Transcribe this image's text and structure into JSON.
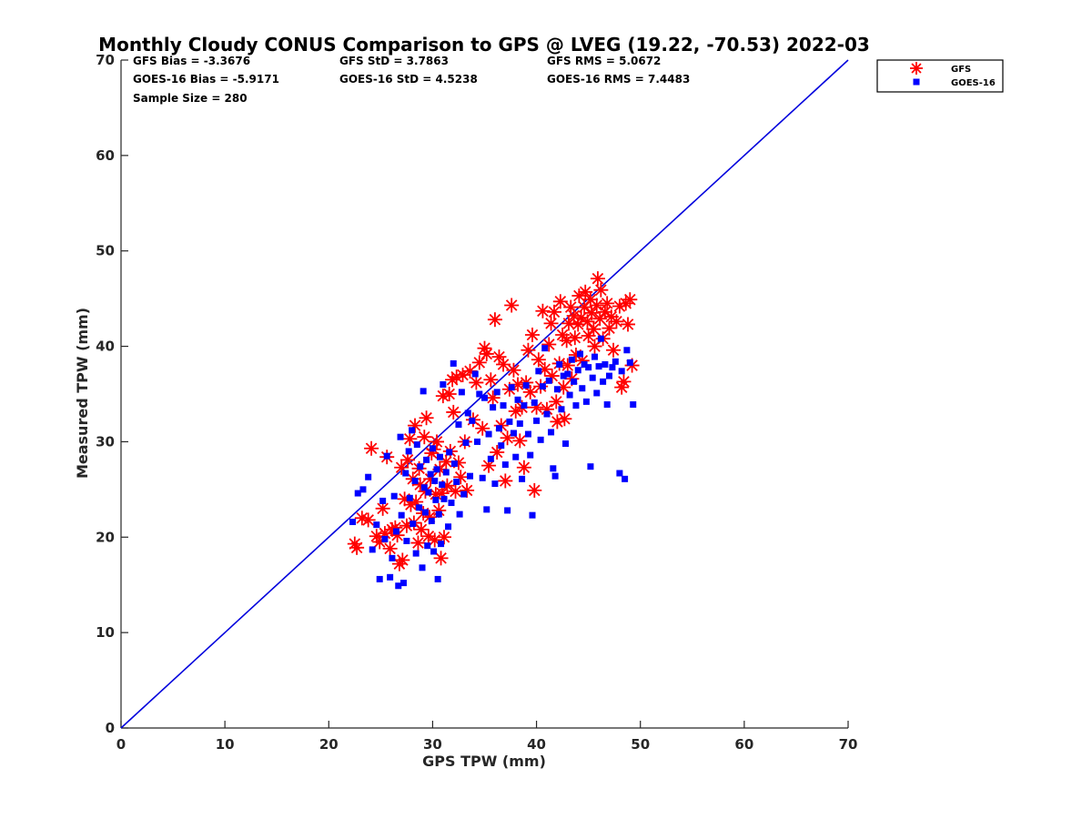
{
  "colors": {
    "gfs": "#ff0000",
    "goes": "#0000ff",
    "one_to_one": "#0000dd",
    "axis": "#262626"
  },
  "chart_data": {
    "type": "scatter",
    "title": "Monthly Cloudy CONUS Comparison to GPS @ LVEG (19.22, -70.53) 2022-03",
    "xlabel": "GPS TPW (mm)",
    "ylabel": "Measured TPW (mm)",
    "xlim": [
      0,
      70
    ],
    "ylim": [
      0,
      70
    ],
    "xticks": [
      "0",
      "10",
      "20",
      "30",
      "40",
      "50",
      "60",
      "70"
    ],
    "yticks": [
      "0",
      "10",
      "20",
      "30",
      "40",
      "50",
      "60",
      "70"
    ],
    "grid": false,
    "legend_position": "top-right outside",
    "stats": [
      "GFS Bias = -3.3676",
      "GFS StD = 3.7863",
      "GFS RMS = 5.0672",
      "GOES-16 Bias = -5.9171",
      "GOES-16 StD = 4.5238",
      "GOES-16 RMS = 7.4483",
      "Sample Size = 280"
    ],
    "reference_line": {
      "x": [
        0,
        70
      ],
      "y": [
        0,
        70
      ]
    },
    "series": [
      {
        "name": "GFS",
        "marker": "asterisk",
        "points": [
          [
            22.5,
            19.3
          ],
          [
            22.7,
            18.9
          ],
          [
            23.2,
            22.0
          ],
          [
            23.8,
            21.8
          ],
          [
            24.1,
            29.3
          ],
          [
            24.6,
            20.1
          ],
          [
            24.9,
            19.5
          ],
          [
            25.2,
            23.0
          ],
          [
            25.4,
            20.4
          ],
          [
            25.6,
            28.4
          ],
          [
            25.9,
            18.8
          ],
          [
            26.1,
            20.8
          ],
          [
            26.4,
            21.0
          ],
          [
            26.6,
            20.2
          ],
          [
            26.8,
            17.2
          ],
          [
            27.0,
            27.3
          ],
          [
            27.1,
            17.6
          ],
          [
            27.3,
            24.0
          ],
          [
            27.5,
            21.2
          ],
          [
            27.6,
            28.1
          ],
          [
            27.8,
            30.3
          ],
          [
            27.9,
            23.4
          ],
          [
            28.1,
            26.1
          ],
          [
            28.2,
            21.5
          ],
          [
            28.3,
            31.7
          ],
          [
            28.4,
            23.7
          ],
          [
            28.6,
            19.4
          ],
          [
            28.7,
            27.2
          ],
          [
            28.8,
            25.5
          ],
          [
            28.9,
            20.8
          ],
          [
            29.1,
            22.5
          ],
          [
            29.2,
            30.5
          ],
          [
            29.3,
            24.8
          ],
          [
            29.4,
            32.5
          ],
          [
            29.6,
            20.1
          ],
          [
            29.7,
            22.1
          ],
          [
            29.8,
            26.1
          ],
          [
            29.9,
            28.8
          ],
          [
            30.1,
            29.2
          ],
          [
            30.2,
            19.7
          ],
          [
            30.3,
            24.5
          ],
          [
            30.4,
            30.0
          ],
          [
            30.6,
            22.8
          ],
          [
            30.7,
            27.1
          ],
          [
            30.8,
            17.8
          ],
          [
            30.9,
            24.6
          ],
          [
            31.0,
            34.8
          ],
          [
            31.1,
            20.0
          ],
          [
            31.3,
            27.9
          ],
          [
            31.4,
            25.4
          ],
          [
            31.6,
            35.0
          ],
          [
            31.7,
            29.0
          ],
          [
            31.9,
            36.5
          ],
          [
            32.0,
            33.1
          ],
          [
            32.2,
            24.8
          ],
          [
            32.3,
            36.8
          ],
          [
            32.5,
            27.8
          ],
          [
            32.7,
            26.3
          ],
          [
            32.9,
            37.0
          ],
          [
            33.1,
            30.0
          ],
          [
            33.3,
            24.9
          ],
          [
            33.6,
            37.4
          ],
          [
            33.9,
            32.3
          ],
          [
            34.2,
            36.2
          ],
          [
            34.5,
            38.3
          ],
          [
            34.8,
            31.4
          ],
          [
            35.0,
            39.8
          ],
          [
            35.2,
            39.2
          ],
          [
            35.4,
            27.5
          ],
          [
            35.6,
            36.5
          ],
          [
            35.8,
            34.6
          ],
          [
            36.0,
            42.8
          ],
          [
            36.2,
            28.9
          ],
          [
            36.4,
            38.9
          ],
          [
            36.6,
            31.7
          ],
          [
            36.8,
            38.1
          ],
          [
            37.0,
            25.9
          ],
          [
            37.2,
            30.4
          ],
          [
            37.4,
            35.5
          ],
          [
            37.6,
            44.3
          ],
          [
            37.8,
            37.5
          ],
          [
            38.0,
            33.2
          ],
          [
            38.2,
            36.0
          ],
          [
            38.4,
            30.1
          ],
          [
            38.6,
            33.6
          ],
          [
            38.8,
            27.3
          ],
          [
            39.0,
            36.2
          ],
          [
            39.2,
            39.6
          ],
          [
            39.4,
            35.2
          ],
          [
            39.6,
            41.2
          ],
          [
            39.8,
            24.9
          ],
          [
            40.0,
            33.6
          ],
          [
            40.2,
            38.6
          ],
          [
            40.4,
            35.8
          ],
          [
            40.6,
            43.7
          ],
          [
            40.8,
            37.6
          ],
          [
            41.0,
            33.4
          ],
          [
            41.2,
            40.2
          ],
          [
            41.4,
            42.4
          ],
          [
            41.5,
            36.9
          ],
          [
            41.7,
            43.6
          ],
          [
            41.9,
            34.2
          ],
          [
            42.0,
            32.1
          ],
          [
            42.2,
            38.2
          ],
          [
            42.3,
            44.7
          ],
          [
            42.5,
            41.2
          ],
          [
            42.6,
            35.7
          ],
          [
            42.7,
            32.4
          ],
          [
            42.9,
            40.6
          ],
          [
            43.0,
            38.0
          ],
          [
            43.1,
            42.4
          ],
          [
            43.3,
            44.1
          ],
          [
            43.4,
            36.6
          ],
          [
            43.6,
            43.2
          ],
          [
            43.7,
            40.9
          ],
          [
            43.8,
            39.1
          ],
          [
            44.0,
            42.3
          ],
          [
            44.1,
            45.3
          ],
          [
            44.3,
            43.0
          ],
          [
            44.4,
            38.5
          ],
          [
            44.6,
            44.1
          ],
          [
            44.7,
            45.7
          ],
          [
            44.9,
            42.6
          ],
          [
            45.0,
            41.1
          ],
          [
            45.2,
            44.9
          ],
          [
            45.3,
            43.5
          ],
          [
            45.5,
            41.8
          ],
          [
            45.6,
            40.0
          ],
          [
            45.8,
            44.3
          ],
          [
            45.9,
            47.1
          ],
          [
            46.1,
            42.9
          ],
          [
            46.2,
            45.9
          ],
          [
            46.4,
            40.8
          ],
          [
            46.6,
            43.6
          ],
          [
            46.8,
            44.5
          ],
          [
            47.0,
            41.9
          ],
          [
            47.2,
            43.1
          ],
          [
            47.4,
            39.6
          ],
          [
            47.7,
            42.6
          ],
          [
            48.0,
            44.2
          ],
          [
            48.2,
            35.7
          ],
          [
            48.4,
            36.3
          ],
          [
            48.6,
            44.5
          ],
          [
            48.8,
            42.3
          ],
          [
            49.0,
            44.9
          ],
          [
            49.2,
            38.0
          ]
        ]
      },
      {
        "name": "GOES-16",
        "marker": "square",
        "points": [
          [
            22.3,
            21.6
          ],
          [
            22.8,
            24.6
          ],
          [
            23.3,
            25.0
          ],
          [
            23.8,
            26.3
          ],
          [
            24.2,
            18.7
          ],
          [
            24.6,
            21.3
          ],
          [
            24.9,
            15.6
          ],
          [
            25.2,
            23.8
          ],
          [
            25.4,
            19.8
          ],
          [
            25.6,
            28.5
          ],
          [
            25.9,
            15.8
          ],
          [
            26.1,
            17.8
          ],
          [
            26.3,
            24.3
          ],
          [
            26.5,
            20.6
          ],
          [
            26.7,
            14.9
          ],
          [
            26.9,
            30.5
          ],
          [
            27.0,
            22.3
          ],
          [
            27.2,
            15.2
          ],
          [
            27.4,
            26.7
          ],
          [
            27.5,
            19.6
          ],
          [
            27.7,
            29.0
          ],
          [
            27.8,
            24.1
          ],
          [
            28.0,
            31.2
          ],
          [
            28.1,
            21.4
          ],
          [
            28.3,
            25.9
          ],
          [
            28.4,
            18.3
          ],
          [
            28.5,
            29.7
          ],
          [
            28.7,
            23.1
          ],
          [
            28.8,
            27.4
          ],
          [
            29.0,
            16.8
          ],
          [
            29.1,
            35.3
          ],
          [
            29.2,
            25.2
          ],
          [
            29.3,
            22.6
          ],
          [
            29.4,
            28.1
          ],
          [
            29.5,
            19.1
          ],
          [
            29.6,
            24.7
          ],
          [
            29.8,
            26.6
          ],
          [
            29.9,
            21.7
          ],
          [
            30.0,
            29.3
          ],
          [
            30.1,
            18.5
          ],
          [
            30.2,
            25.9
          ],
          [
            30.3,
            23.9
          ],
          [
            30.4,
            27.1
          ],
          [
            30.5,
            15.6
          ],
          [
            30.6,
            22.4
          ],
          [
            30.7,
            28.4
          ],
          [
            30.8,
            19.3
          ],
          [
            30.9,
            25.5
          ],
          [
            31.0,
            36.0
          ],
          [
            31.1,
            24.0
          ],
          [
            31.3,
            26.8
          ],
          [
            31.5,
            21.1
          ],
          [
            31.6,
            28.9
          ],
          [
            31.8,
            23.6
          ],
          [
            32.0,
            38.2
          ],
          [
            32.1,
            27.7
          ],
          [
            32.3,
            25.8
          ],
          [
            32.5,
            31.8
          ],
          [
            32.6,
            22.4
          ],
          [
            32.8,
            35.2
          ],
          [
            33.0,
            24.5
          ],
          [
            33.2,
            29.9
          ],
          [
            33.4,
            33.0
          ],
          [
            33.6,
            26.4
          ],
          [
            33.8,
            32.2
          ],
          [
            34.1,
            37.1
          ],
          [
            34.3,
            30.0
          ],
          [
            34.5,
            35.0
          ],
          [
            34.8,
            26.2
          ],
          [
            35.0,
            34.6
          ],
          [
            35.2,
            22.9
          ],
          [
            35.4,
            30.8
          ],
          [
            35.6,
            28.2
          ],
          [
            35.8,
            33.6
          ],
          [
            36.0,
            25.6
          ],
          [
            36.2,
            35.2
          ],
          [
            36.4,
            31.4
          ],
          [
            36.6,
            29.6
          ],
          [
            36.8,
            33.8
          ],
          [
            37.0,
            27.6
          ],
          [
            37.2,
            22.8
          ],
          [
            37.4,
            32.1
          ],
          [
            37.6,
            35.7
          ],
          [
            37.8,
            30.9
          ],
          [
            38.0,
            28.4
          ],
          [
            38.2,
            34.4
          ],
          [
            38.4,
            31.9
          ],
          [
            38.6,
            26.1
          ],
          [
            38.8,
            33.8
          ],
          [
            39.0,
            35.9
          ],
          [
            39.2,
            30.8
          ],
          [
            39.4,
            28.6
          ],
          [
            39.6,
            22.3
          ],
          [
            39.8,
            34.1
          ],
          [
            40.0,
            32.2
          ],
          [
            40.2,
            37.4
          ],
          [
            40.4,
            30.2
          ],
          [
            40.6,
            35.8
          ],
          [
            40.8,
            39.8
          ],
          [
            41.0,
            32.9
          ],
          [
            41.2,
            36.4
          ],
          [
            41.4,
            31.0
          ],
          [
            41.6,
            27.2
          ],
          [
            41.8,
            26.4
          ],
          [
            42.0,
            35.5
          ],
          [
            42.2,
            38.1
          ],
          [
            42.4,
            33.4
          ],
          [
            42.6,
            36.9
          ],
          [
            42.8,
            29.8
          ],
          [
            43.0,
            37.1
          ],
          [
            43.2,
            34.9
          ],
          [
            43.4,
            38.6
          ],
          [
            43.6,
            36.3
          ],
          [
            43.8,
            33.8
          ],
          [
            44.0,
            37.5
          ],
          [
            44.2,
            39.2
          ],
          [
            44.4,
            35.6
          ],
          [
            44.6,
            38.1
          ],
          [
            44.8,
            34.2
          ],
          [
            45.0,
            37.8
          ],
          [
            45.2,
            27.4
          ],
          [
            45.4,
            36.7
          ],
          [
            45.6,
            38.9
          ],
          [
            45.8,
            35.1
          ],
          [
            46.0,
            37.9
          ],
          [
            46.2,
            40.8
          ],
          [
            46.4,
            36.3
          ],
          [
            46.6,
            38.1
          ],
          [
            46.8,
            33.9
          ],
          [
            47.0,
            36.9
          ],
          [
            47.3,
            37.8
          ],
          [
            47.6,
            38.4
          ],
          [
            48.0,
            26.7
          ],
          [
            48.2,
            37.4
          ],
          [
            48.5,
            26.1
          ],
          [
            48.7,
            39.6
          ],
          [
            49.0,
            38.3
          ],
          [
            49.3,
            33.9
          ]
        ]
      }
    ]
  }
}
